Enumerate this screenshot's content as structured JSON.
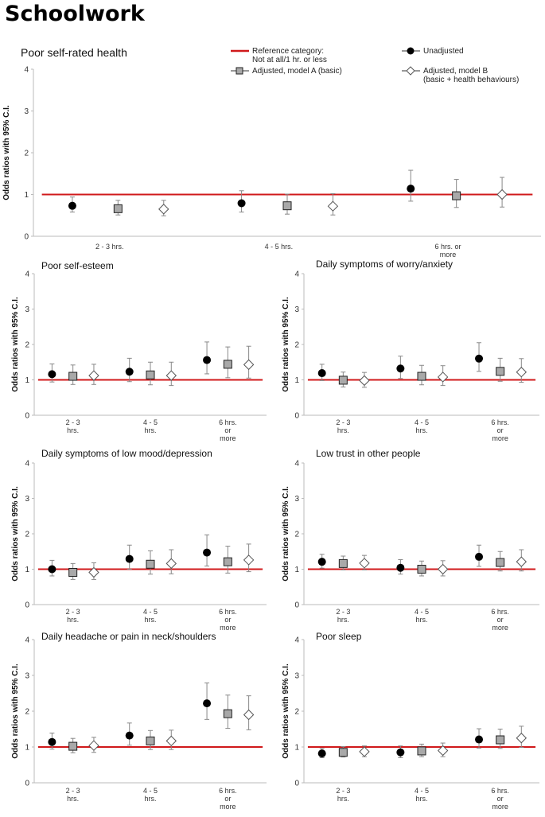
{
  "page": {
    "title": "Schoolwork"
  },
  "legend": {
    "reference_line1": "Reference category:",
    "reference_line2": "Not at all/1 hr. or less",
    "unadjusted": "Unadjusted",
    "model_a": "Adjusted, model A (basic)",
    "model_b_line1": "Adjusted, model B",
    "model_b_line2": "(basic + health behaviours)",
    "reference_color": "#d0191b"
  },
  "chart_data": [
    {
      "type": "scatter",
      "title": "Poor self-rated health",
      "ylabel": "Odds ratios with 95% C.I.",
      "ylim": [
        0,
        4
      ],
      "yticks": [
        "0",
        "1",
        "2",
        "3",
        "4"
      ],
      "categories": [
        [
          "2 - 3 hrs."
        ],
        [
          "4 - 5 hrs."
        ],
        [
          "6 hrs. or",
          "more"
        ]
      ],
      "reference": 1,
      "series": [
        {
          "name": "Unadjusted",
          "values": [
            0.73,
            0.79,
            1.14
          ],
          "lower": [
            0.58,
            0.58,
            0.84
          ],
          "upper": [
            0.94,
            1.09,
            1.58
          ]
        },
        {
          "name": "Adjusted, model A (basic)",
          "values": [
            0.66,
            0.73,
            0.97
          ],
          "lower": [
            0.51,
            0.53,
            0.69
          ],
          "upper": [
            0.86,
            1.01,
            1.36
          ]
        },
        {
          "name": "Adjusted, model B",
          "values": [
            0.65,
            0.72,
            1.0
          ],
          "lower": [
            0.49,
            0.51,
            0.7
          ],
          "upper": [
            0.86,
            1.02,
            1.41
          ]
        }
      ]
    },
    {
      "type": "scatter",
      "title": "Poor self-esteem",
      "ylabel": "Odds ratios with 95% C.I.",
      "ylim": [
        0,
        4
      ],
      "yticks": [
        "0",
        "1",
        "2",
        "3",
        "4"
      ],
      "categories": [
        [
          "2 - 3",
          "hrs."
        ],
        [
          "4 - 5",
          "hrs."
        ],
        [
          "6 hrs.",
          "or",
          "more"
        ]
      ],
      "reference": 1,
      "series": [
        {
          "name": "Unadjusted",
          "values": [
            1.16,
            1.23,
            1.56
          ],
          "lower": [
            0.94,
            0.95,
            1.17
          ],
          "upper": [
            1.45,
            1.61,
            2.07
          ]
        },
        {
          "name": "Adjusted, model A (basic)",
          "values": [
            1.1,
            1.14,
            1.44
          ],
          "lower": [
            0.87,
            0.86,
            1.06
          ],
          "upper": [
            1.42,
            1.5,
            1.93
          ]
        },
        {
          "name": "Adjusted, model B",
          "values": [
            1.12,
            1.12,
            1.43
          ],
          "lower": [
            0.87,
            0.84,
            1.05
          ],
          "upper": [
            1.44,
            1.5,
            1.95
          ]
        }
      ]
    },
    {
      "type": "scatter",
      "title": "Daily symptoms of worry/anxiety",
      "ylabel": "Odds ratios with 95% C.I.",
      "ylim": [
        0,
        4
      ],
      "yticks": [
        "0",
        "1",
        "2",
        "3",
        "4"
      ],
      "categories": [
        [
          "2 - 3",
          "hrs."
        ],
        [
          "4 - 5",
          "hrs."
        ],
        [
          "6 hrs.",
          "or",
          "more"
        ]
      ],
      "reference": 1,
      "series": [
        {
          "name": "Unadjusted",
          "values": [
            1.19,
            1.32,
            1.6
          ],
          "lower": [
            0.98,
            1.04,
            1.24
          ],
          "upper": [
            1.44,
            1.67,
            2.05
          ]
        },
        {
          "name": "Adjusted, model A (basic)",
          "values": [
            0.99,
            1.1,
            1.24
          ],
          "lower": [
            0.8,
            0.86,
            0.96
          ],
          "upper": [
            1.22,
            1.41,
            1.61
          ]
        },
        {
          "name": "Adjusted, model B",
          "values": [
            0.98,
            1.08,
            1.22
          ],
          "lower": [
            0.79,
            0.84,
            0.93
          ],
          "upper": [
            1.21,
            1.4,
            1.6
          ]
        }
      ]
    },
    {
      "type": "scatter",
      "title": "Daily symptoms of low mood/depression",
      "ylabel": "Odds ratios with 95% C.I.",
      "ylim": [
        0,
        4
      ],
      "yticks": [
        "0",
        "1",
        "2",
        "3",
        "4"
      ],
      "categories": [
        [
          "2 - 3",
          "hrs."
        ],
        [
          "4 - 5",
          "hrs."
        ],
        [
          "6 hrs.",
          "or",
          "more"
        ]
      ],
      "reference": 1,
      "series": [
        {
          "name": "Unadjusted",
          "values": [
            1.0,
            1.29,
            1.47
          ],
          "lower": [
            0.81,
            1.0,
            1.09
          ],
          "upper": [
            1.25,
            1.68,
            1.97
          ]
        },
        {
          "name": "Adjusted, model A (basic)",
          "values": [
            0.91,
            1.14,
            1.21
          ],
          "lower": [
            0.71,
            0.86,
            0.89
          ],
          "upper": [
            1.16,
            1.52,
            1.65
          ]
        },
        {
          "name": "Adjusted, model B",
          "values": [
            0.91,
            1.16,
            1.26
          ],
          "lower": [
            0.71,
            0.87,
            0.93
          ],
          "upper": [
            1.18,
            1.55,
            1.71
          ]
        }
      ]
    },
    {
      "type": "scatter",
      "title": "Low trust in other people",
      "ylabel": "Odds ratios with 95% C.I.",
      "ylim": [
        0,
        4
      ],
      "yticks": [
        "0",
        "1",
        "2",
        "3",
        "4"
      ],
      "categories": [
        [
          "2 - 3",
          "hrs."
        ],
        [
          "4 - 5",
          "hrs."
        ],
        [
          "6 hrs.",
          "or",
          "more"
        ]
      ],
      "reference": 1,
      "series": [
        {
          "name": "Unadjusted",
          "values": [
            1.21,
            1.04,
            1.35
          ],
          "lower": [
            1.03,
            0.86,
            1.08
          ],
          "upper": [
            1.42,
            1.27,
            1.68
          ]
        },
        {
          "name": "Adjusted, model A (basic)",
          "values": [
            1.16,
            1.0,
            1.19
          ],
          "lower": [
            0.98,
            0.81,
            0.95
          ],
          "upper": [
            1.37,
            1.23,
            1.5
          ]
        },
        {
          "name": "Adjusted, model B",
          "values": [
            1.17,
            1.0,
            1.21
          ],
          "lower": [
            0.98,
            0.81,
            0.95
          ],
          "upper": [
            1.39,
            1.24,
            1.55
          ]
        }
      ]
    },
    {
      "type": "scatter",
      "title": "Daily headache or pain in neck/shoulders",
      "ylabel": "Odds ratios with 95% C.I.",
      "ylim": [
        0,
        4
      ],
      "yticks": [
        "0",
        "1",
        "2",
        "3",
        "4"
      ],
      "categories": [
        [
          "2 - 3",
          "hrs."
        ],
        [
          "4 - 5",
          "hrs."
        ],
        [
          "6 hrs.",
          "or",
          "more"
        ]
      ],
      "reference": 1,
      "series": [
        {
          "name": "Unadjusted",
          "values": [
            1.14,
            1.32,
            2.22
          ],
          "lower": [
            0.94,
            1.05,
            1.77
          ],
          "upper": [
            1.39,
            1.67,
            2.79
          ]
        },
        {
          "name": "Adjusted, model A (basic)",
          "values": [
            1.02,
            1.17,
            1.93
          ],
          "lower": [
            0.84,
            0.93,
            1.52
          ],
          "upper": [
            1.24,
            1.46,
            2.45
          ]
        },
        {
          "name": "Adjusted, model B",
          "values": [
            1.04,
            1.17,
            1.9
          ],
          "lower": [
            0.85,
            0.93,
            1.48
          ],
          "upper": [
            1.27,
            1.47,
            2.43
          ]
        }
      ]
    },
    {
      "type": "scatter",
      "title": "Poor sleep",
      "ylabel": "Odds ratios with 95% C.I.",
      "ylim": [
        0,
        4
      ],
      "yticks": [
        "0",
        "1",
        "2",
        "3",
        "4"
      ],
      "categories": [
        [
          "2 - 3",
          "hrs."
        ],
        [
          "4 - 5",
          "hrs."
        ],
        [
          "6 hrs.",
          "or",
          "more"
        ]
      ],
      "reference": 1,
      "series": [
        {
          "name": "Unadjusted",
          "values": [
            0.82,
            0.85,
            1.21
          ],
          "lower": [
            0.7,
            0.7,
            0.97
          ],
          "upper": [
            0.96,
            1.03,
            1.51
          ]
        },
        {
          "name": "Adjusted, model A (basic)",
          "values": [
            0.85,
            0.89,
            1.2
          ],
          "lower": [
            0.72,
            0.73,
            0.96
          ],
          "upper": [
            1.01,
            1.08,
            1.5
          ]
        },
        {
          "name": "Adjusted, model B",
          "values": [
            0.87,
            0.9,
            1.25
          ],
          "lower": [
            0.73,
            0.73,
            0.99
          ],
          "upper": [
            1.03,
            1.11,
            1.58
          ]
        }
      ]
    }
  ]
}
